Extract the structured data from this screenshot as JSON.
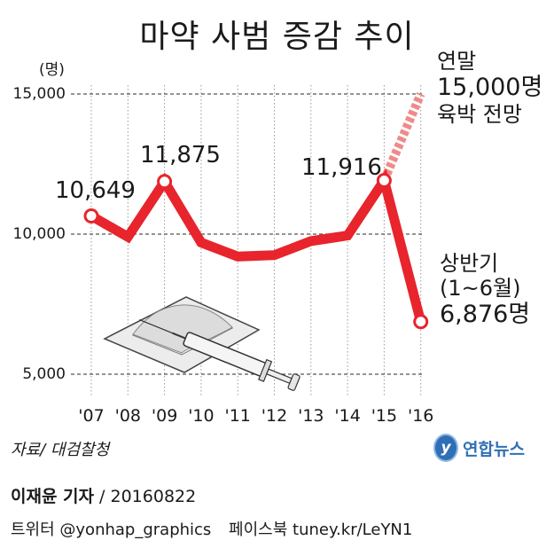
{
  "title": "마약 사범 증감 추이",
  "unit_label": "(명)",
  "source": "자료/ 대검찰청",
  "logo": {
    "mark": "y",
    "text": "연합뉴스"
  },
  "byline": {
    "author": "이재윤 기자",
    "date": "20160822"
  },
  "social": {
    "twitter": "트위터 @yonhap_graphics",
    "facebook": "페이스북 tuney.kr/LeYN1"
  },
  "annotations": {
    "forecast": [
      "연말",
      "15,000명",
      "육박 전망"
    ],
    "half_year": [
      "상반기",
      "(1~6월)",
      "6,876명"
    ]
  },
  "chart_data": {
    "type": "line",
    "title": "마약 사범 증감 추이",
    "ylabel": "(명)",
    "xlabel": "",
    "categories": [
      "'07",
      "'08",
      "'09",
      "'10",
      "'11",
      "'12",
      "'13",
      "'14",
      "'15",
      "'16"
    ],
    "values": [
      10649,
      9900,
      11875,
      9700,
      9200,
      9250,
      9750,
      9950,
      11916,
      6876
    ],
    "forecast": {
      "from": "'15",
      "to": "'16",
      "from_value": 11916,
      "to_value": 15000
    },
    "point_labels": {
      "'07": "10,649",
      "'09": "11,875",
      "'15": "11,916"
    },
    "yticks": [
      5000,
      10000,
      15000
    ],
    "ytick_labels": [
      "5,000",
      "10,000",
      "15,000"
    ],
    "ylim": [
      5000,
      15000
    ],
    "line_color": "#e8242c",
    "forecast_color": "#f08a8a",
    "grid": "vertical dotted lines at each year; dashed reference lines at y ticks"
  }
}
